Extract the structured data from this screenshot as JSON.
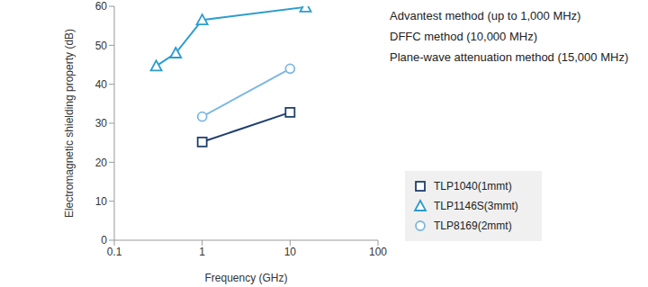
{
  "chart_data": {
    "type": "line",
    "x_label": "Frequency (GHz)",
    "y_label": "Electromagnetic shielding property (dB)",
    "annotations": [
      "Advantest method (up to 1,000 MHz)",
      "DFFC method (10,000 MHz)",
      "Plane-wave attenuation method (15,000 MHz)"
    ],
    "series": [
      {
        "name": "TLP1040(1mmt)",
        "color": "#1f3f6e",
        "marker": "square",
        "x": [
          1,
          10
        ],
        "values": [
          25.2,
          32.8
        ]
      },
      {
        "name": "TLP1146S(3mmt)",
        "color": "#2b9ccf",
        "marker": "triangle",
        "x": [
          0.3,
          0.5,
          1,
          15
        ],
        "values": [
          44.7,
          48,
          56.5,
          59.8
        ]
      },
      {
        "name": "TLP8169(2mmt)",
        "color": "#7db8e0",
        "marker": "circle",
        "x": [
          1,
          10
        ],
        "values": [
          31.7,
          44
        ]
      }
    ],
    "xlim": [
      0.1,
      100
    ],
    "xticks": [
      0.1,
      1,
      10,
      100
    ],
    "ylim": [
      0,
      60
    ],
    "yticks": [
      0,
      10,
      20,
      30,
      40,
      50,
      60
    ],
    "log": "x",
    "grid": false,
    "legend": "right"
  }
}
